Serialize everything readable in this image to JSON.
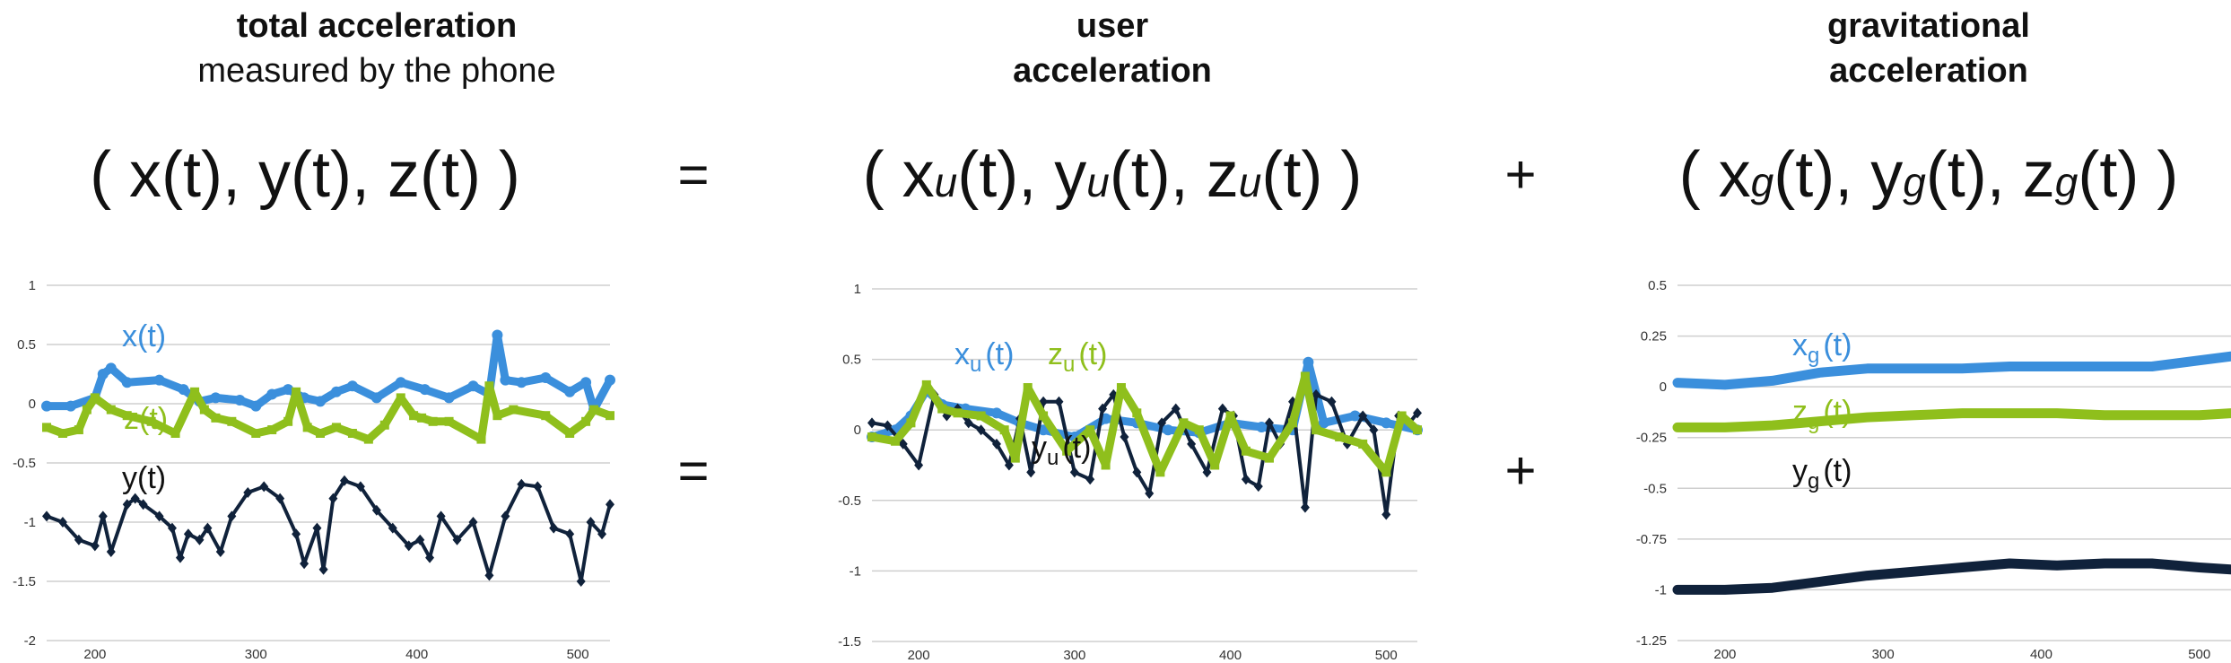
{
  "headers": {
    "total_title": "total acceleration",
    "total_sub": "measured by the phone",
    "user_title_1": "user",
    "user_title_2": "acceleration",
    "grav_title_1": "gravitational",
    "grav_title_2": "acceleration"
  },
  "formulas": {
    "total": {
      "open": "( x(t), y(t), z(t) )"
    },
    "user": {
      "a": "( x",
      "b": "(t), y",
      "c": "(t), z",
      "d": "(t) )",
      "sub": "u"
    },
    "grav": {
      "a": "( x",
      "b": "(t), y",
      "c": "(t), z",
      "d": "(t) )",
      "sub": "g"
    },
    "equals": "=",
    "plus": "+"
  },
  "colors": {
    "x": "#3b8fdc",
    "y": "#10223b",
    "z": "#8fbf1c",
    "grid": "#cfcfcf",
    "tick": "#333333"
  },
  "chart_data": [
    {
      "type": "line",
      "title": "",
      "xlim": [
        170,
        520
      ],
      "ylim": [
        -2,
        1
      ],
      "x_ticks": [
        200,
        300,
        400,
        500
      ],
      "y_ticks": [
        1,
        0.5,
        0,
        -0.5,
        -1,
        -1.5,
        -2
      ],
      "labels": [
        {
          "text": "x(t)",
          "series": "x"
        },
        {
          "text": "z(t)",
          "series": "z"
        },
        {
          "text": "y(t)",
          "series": "y"
        }
      ],
      "series": [
        {
          "name": "x(t)",
          "key": "x",
          "x": [
            170,
            185,
            200,
            205,
            210,
            220,
            240,
            255,
            265,
            275,
            290,
            300,
            310,
            320,
            330,
            340,
            350,
            360,
            375,
            390,
            405,
            420,
            435,
            445,
            450,
            455,
            465,
            480,
            495,
            505,
            510,
            520
          ],
          "values": [
            -0.02,
            -0.02,
            0.05,
            0.25,
            0.3,
            0.18,
            0.2,
            0.12,
            0.02,
            0.05,
            0.03,
            -0.02,
            0.08,
            0.12,
            0.05,
            0.02,
            0.1,
            0.15,
            0.05,
            0.18,
            0.12,
            0.05,
            0.15,
            0.08,
            0.58,
            0.2,
            0.18,
            0.22,
            0.1,
            0.18,
            -0.05,
            0.2
          ]
        },
        {
          "name": "z(t)",
          "key": "z",
          "x": [
            170,
            180,
            190,
            195,
            200,
            210,
            220,
            235,
            250,
            262,
            268,
            275,
            285,
            300,
            310,
            320,
            325,
            332,
            340,
            350,
            360,
            370,
            380,
            390,
            398,
            403,
            410,
            420,
            440,
            445,
            450,
            460,
            480,
            495,
            505,
            510,
            520
          ],
          "values": [
            -0.2,
            -0.25,
            -0.22,
            -0.05,
            0.05,
            -0.05,
            -0.1,
            -0.15,
            -0.25,
            0.1,
            -0.05,
            -0.12,
            -0.15,
            -0.25,
            -0.22,
            -0.15,
            0.1,
            -0.2,
            -0.25,
            -0.2,
            -0.25,
            -0.3,
            -0.18,
            0.05,
            -0.1,
            -0.12,
            -0.15,
            -0.15,
            -0.3,
            0.15,
            -0.1,
            -0.05,
            -0.1,
            -0.25,
            -0.15,
            -0.05,
            -0.1
          ]
        },
        {
          "name": "y(t)",
          "key": "y",
          "x": [
            170,
            180,
            190,
            200,
            205,
            210,
            220,
            225,
            230,
            240,
            248,
            253,
            258,
            265,
            270,
            278,
            285,
            295,
            305,
            315,
            325,
            330,
            338,
            342,
            348,
            355,
            365,
            375,
            385,
            395,
            402,
            408,
            415,
            425,
            435,
            445,
            455,
            465,
            475,
            485,
            495,
            502,
            508,
            515,
            520
          ],
          "values": [
            -0.95,
            -1.0,
            -1.15,
            -1.2,
            -0.95,
            -1.25,
            -0.85,
            -0.8,
            -0.85,
            -0.95,
            -1.05,
            -1.3,
            -1.1,
            -1.15,
            -1.05,
            -1.25,
            -0.95,
            -0.75,
            -0.7,
            -0.8,
            -1.1,
            -1.35,
            -1.05,
            -1.4,
            -0.8,
            -0.65,
            -0.7,
            -0.9,
            -1.05,
            -1.2,
            -1.15,
            -1.3,
            -0.95,
            -1.15,
            -1.0,
            -1.45,
            -0.95,
            -0.68,
            -0.7,
            -1.05,
            -1.1,
            -1.5,
            -1.0,
            -1.1,
            -0.85
          ]
        }
      ]
    },
    {
      "type": "line",
      "title": "",
      "xlim": [
        170,
        520
      ],
      "ylim": [
        -1.5,
        1
      ],
      "x_ticks": [
        200,
        300,
        400,
        500
      ],
      "y_ticks": [
        1,
        0.5,
        0,
        -0.5,
        -1,
        -1.5
      ],
      "labels": [
        {
          "text": "x",
          "sub": "u",
          "suffix": "(t)",
          "series": "x"
        },
        {
          "text": "z",
          "sub": "u",
          "suffix": "(t)",
          "series": "z"
        },
        {
          "text": "y",
          "sub": "u",
          "suffix": "(t)",
          "series": "y"
        }
      ],
      "series": [
        {
          "name": "x_u(t)",
          "key": "x",
          "x": [
            170,
            185,
            195,
            205,
            215,
            230,
            250,
            265,
            280,
            300,
            320,
            340,
            360,
            380,
            400,
            420,
            440,
            450,
            460,
            480,
            500,
            520
          ],
          "values": [
            -0.05,
            0.0,
            0.1,
            0.28,
            0.18,
            0.15,
            0.12,
            0.05,
            0.0,
            -0.05,
            0.08,
            0.05,
            0.0,
            -0.02,
            0.05,
            0.02,
            0.0,
            0.48,
            0.05,
            0.1,
            0.05,
            0.0
          ]
        },
        {
          "name": "y_u(t)",
          "key": "y",
          "x": [
            170,
            180,
            190,
            200,
            210,
            218,
            225,
            232,
            240,
            250,
            258,
            265,
            272,
            280,
            290,
            300,
            310,
            318,
            325,
            332,
            340,
            348,
            356,
            365,
            375,
            385,
            395,
            402,
            410,
            418,
            425,
            432,
            440,
            448,
            455,
            465,
            475,
            485,
            492,
            500,
            508,
            515,
            520
          ],
          "values": [
            0.05,
            0.03,
            -0.1,
            -0.25,
            0.25,
            0.1,
            0.15,
            0.05,
            0.0,
            -0.1,
            -0.25,
            0.08,
            -0.3,
            0.2,
            0.2,
            -0.3,
            -0.35,
            0.15,
            0.25,
            -0.05,
            -0.3,
            -0.45,
            0.05,
            0.15,
            -0.1,
            -0.3,
            0.15,
            0.1,
            -0.35,
            -0.4,
            0.05,
            -0.1,
            0.2,
            -0.55,
            0.25,
            0.2,
            -0.1,
            0.1,
            0.0,
            -0.6,
            0.1,
            0.05,
            0.12
          ]
        },
        {
          "name": "z_u(t)",
          "key": "z",
          "x": [
            170,
            185,
            195,
            205,
            215,
            225,
            240,
            255,
            262,
            270,
            280,
            295,
            310,
            320,
            330,
            340,
            355,
            370,
            380,
            390,
            400,
            410,
            425,
            440,
            448,
            455,
            470,
            485,
            500,
            510,
            520
          ],
          "values": [
            -0.05,
            -0.08,
            0.05,
            0.32,
            0.15,
            0.12,
            0.1,
            0.0,
            -0.2,
            0.3,
            0.1,
            -0.15,
            0.0,
            -0.25,
            0.3,
            0.12,
            -0.3,
            0.05,
            0.0,
            -0.25,
            0.1,
            -0.15,
            -0.2,
            0.05,
            0.38,
            0.0,
            -0.05,
            -0.1,
            -0.3,
            0.1,
            0.0
          ]
        }
      ]
    },
    {
      "type": "line",
      "title": "",
      "xlim": [
        170,
        520
      ],
      "ylim": [
        -1.25,
        0.5
      ],
      "x_ticks": [
        200,
        300,
        400,
        500
      ],
      "y_ticks": [
        0.5,
        0.25,
        0,
        -0.25,
        -0.5,
        -0.75,
        -1,
        -1.25
      ],
      "labels": [
        {
          "text": "x",
          "sub": "g",
          "suffix": "(t)",
          "series": "x"
        },
        {
          "text": "z",
          "sub": "g",
          "suffix": "(t)",
          "series": "z"
        },
        {
          "text": "y",
          "sub": "g",
          "suffix": "(t)",
          "series": "y"
        }
      ],
      "series": [
        {
          "name": "x_g(t)",
          "key": "x",
          "x": [
            170,
            200,
            230,
            260,
            290,
            320,
            350,
            380,
            410,
            440,
            470,
            500,
            520
          ],
          "values": [
            0.02,
            0.01,
            0.03,
            0.07,
            0.09,
            0.09,
            0.09,
            0.1,
            0.1,
            0.1,
            0.1,
            0.13,
            0.15
          ]
        },
        {
          "name": "z_g(t)",
          "key": "z",
          "x": [
            170,
            200,
            230,
            260,
            290,
            320,
            350,
            380,
            410,
            440,
            470,
            500,
            520
          ],
          "values": [
            -0.2,
            -0.2,
            -0.19,
            -0.17,
            -0.15,
            -0.14,
            -0.13,
            -0.13,
            -0.13,
            -0.14,
            -0.14,
            -0.14,
            -0.13
          ]
        },
        {
          "name": "y_g(t)",
          "key": "y",
          "x": [
            170,
            200,
            230,
            260,
            290,
            320,
            350,
            380,
            410,
            440,
            470,
            500,
            520
          ],
          "values": [
            -1.0,
            -1.0,
            -0.99,
            -0.96,
            -0.93,
            -0.91,
            -0.89,
            -0.87,
            -0.88,
            -0.87,
            -0.87,
            -0.89,
            -0.9
          ]
        }
      ]
    }
  ]
}
